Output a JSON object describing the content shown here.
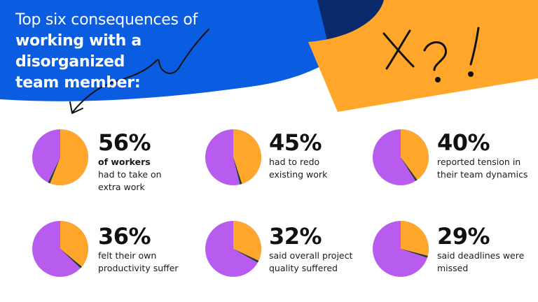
{
  "title": {
    "line1": "Top six consequences of",
    "line2": "working with a disorganized",
    "line3": "team member:"
  },
  "scribble_text": "X?!",
  "colors": {
    "blue": "#0a5ce0",
    "navy": "#0b2a6b",
    "orange": "#ffa62b",
    "purple": "#b85cf0",
    "dark_green": "#1e3d2a",
    "text": "#111111"
  },
  "chart_data": {
    "type": "pie",
    "series_colors": {
      "share": "#ffa62b",
      "rest": "#b85cf0",
      "edge": "#1e3d2a"
    },
    "items": [
      {
        "value": 56,
        "label": "56%",
        "lines": [
          "of workers",
          "had to take on",
          "extra work"
        ],
        "bold_first": true
      },
      {
        "value": 45,
        "label": "45%",
        "lines": [
          "had to redo",
          "existing work"
        ],
        "bold_first": false
      },
      {
        "value": 40,
        "label": "40%",
        "lines": [
          "reported tension in",
          "their team dynamics"
        ],
        "bold_first": false
      },
      {
        "value": 36,
        "label": "36%",
        "lines": [
          "felt their own",
          "productivity suffer"
        ],
        "bold_first": false
      },
      {
        "value": 32,
        "label": "32%",
        "lines": [
          "said overall project",
          "quality suffered"
        ],
        "bold_first": false
      },
      {
        "value": 29,
        "label": "29%",
        "lines": [
          "said deadlines were",
          "missed"
        ],
        "bold_first": false
      }
    ]
  }
}
